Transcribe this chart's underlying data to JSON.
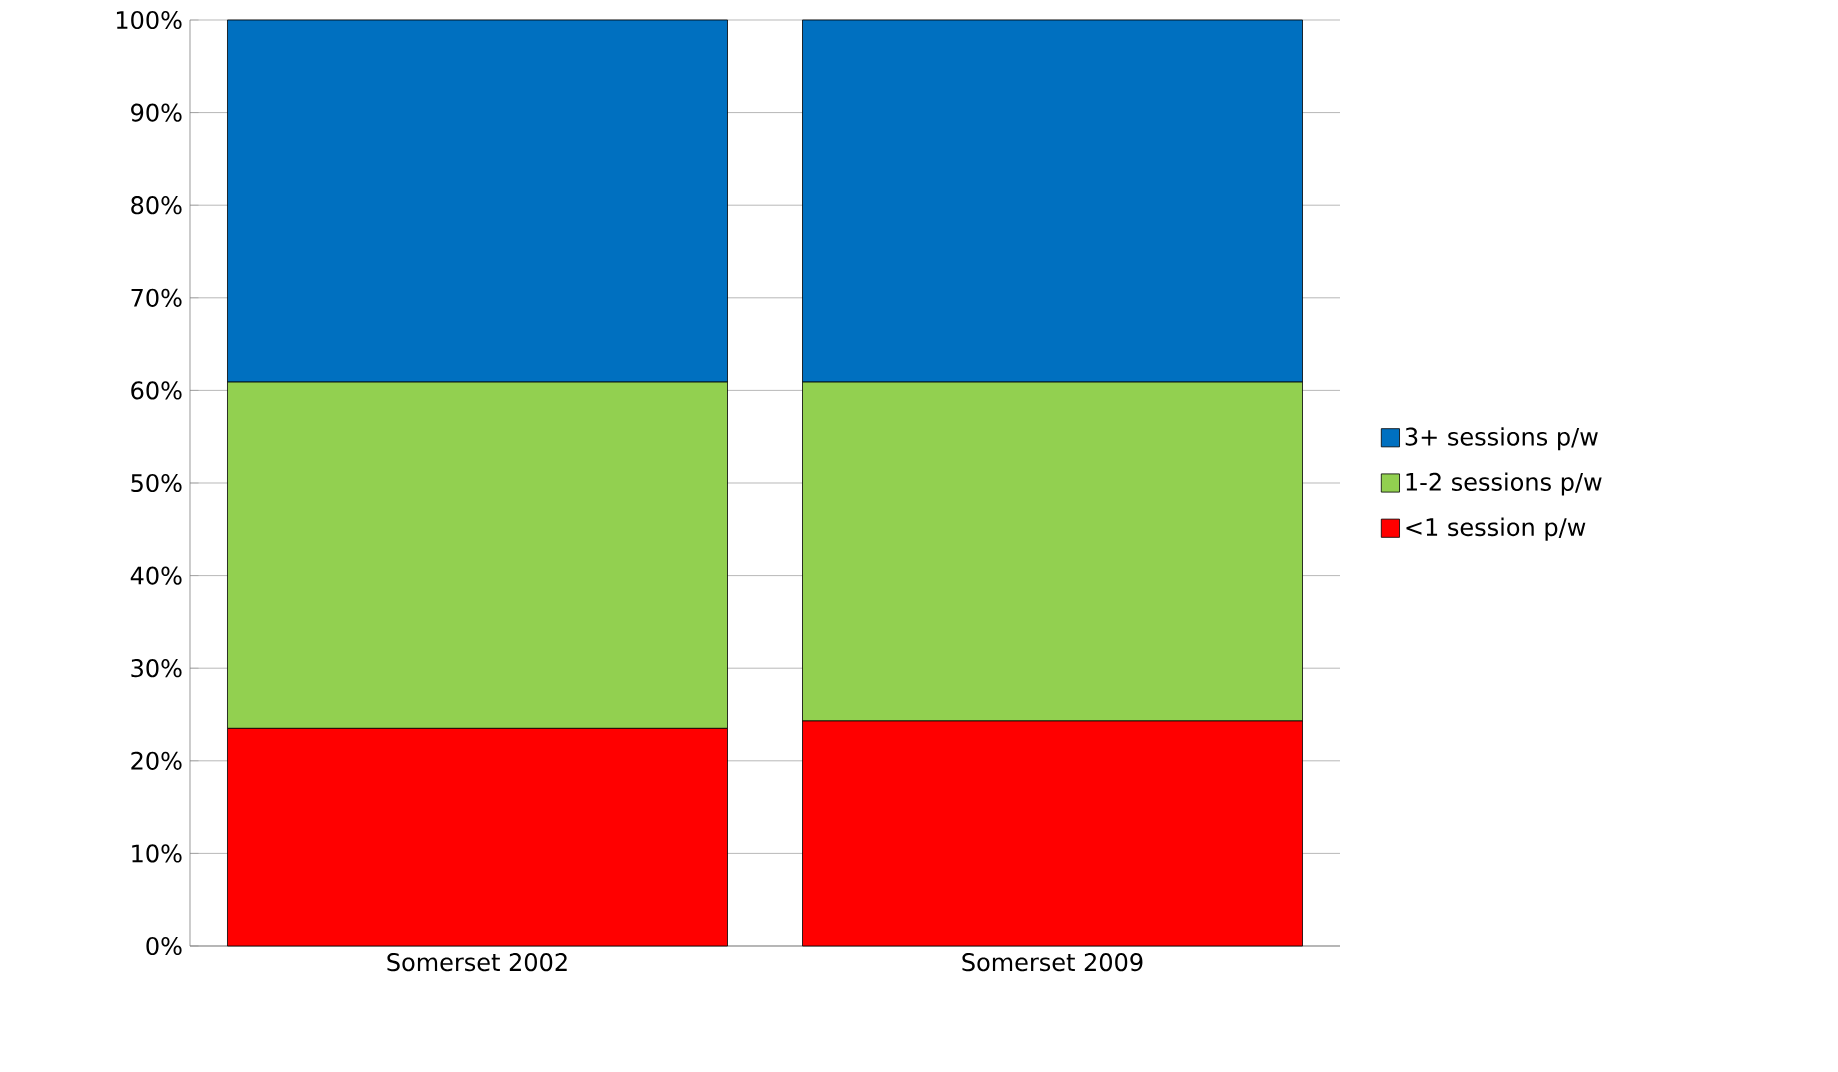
{
  "chart_data": {
    "type": "bar",
    "stacked": true,
    "categories": [
      "Somerset 2002",
      "Somerset 2009"
    ],
    "series": [
      {
        "name": "<1 session p/w",
        "color": "#ff0000",
        "values": [
          23.5,
          24.3
        ]
      },
      {
        "name": "1-2 sessions p/w",
        "color": "#92d050",
        "values": [
          37.4,
          36.6
        ]
      },
      {
        "name": "3+ sessions p/w",
        "color": "#0070c0",
        "values": [
          39.1,
          39.1
        ]
      }
    ],
    "ylim": [
      0,
      100
    ],
    "yticks": [
      {
        "value": 0,
        "label": "0%"
      },
      {
        "value": 10,
        "label": "10%"
      },
      {
        "value": 20,
        "label": "20%"
      },
      {
        "value": 30,
        "label": "30%"
      },
      {
        "value": 40,
        "label": "40%"
      },
      {
        "value": 50,
        "label": "50%"
      },
      {
        "value": 60,
        "label": "60%"
      },
      {
        "value": 70,
        "label": "70%"
      },
      {
        "value": 80,
        "label": "80%"
      },
      {
        "value": 90,
        "label": "90%"
      },
      {
        "value": 100,
        "label": "100%"
      }
    ],
    "grid": "y",
    "legend": "right"
  }
}
